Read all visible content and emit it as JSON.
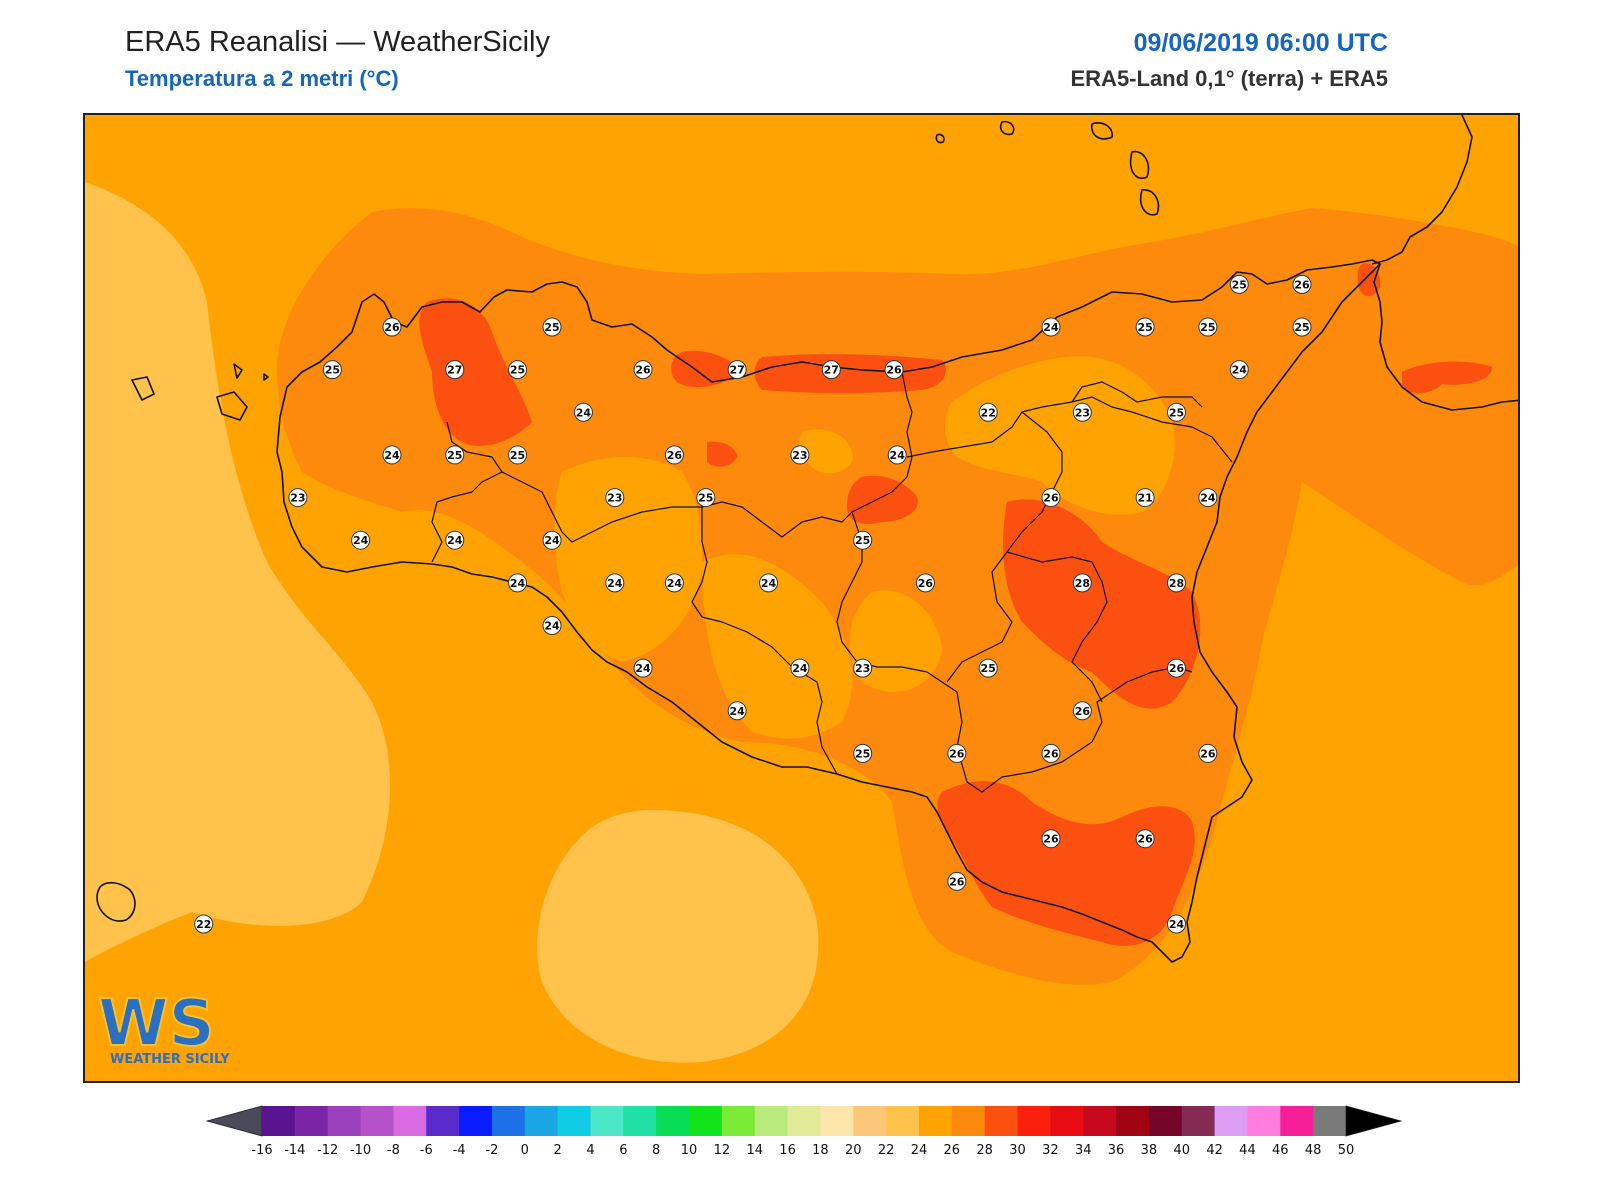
{
  "header": {
    "title": "ERA5 Reanalisi — WeatherSicily",
    "subtitle": "Temperatura a 2 metri (°C)",
    "datetime": "09/06/2019 06:00 UTC",
    "source": "ERA5-Land 0,1° (terra) + ERA5"
  },
  "logo": {
    "letters": "WS",
    "caption": "WEATHER SICILY"
  },
  "colors": {
    "t20": "#ffc24a",
    "t22": "#ffa303",
    "t24": "#fd8a0c",
    "t26": "#fb5010",
    "accent": "#1565c0"
  },
  "station_values": [
    {
      "label": "26",
      "lon": 12.54,
      "lat": 38.22
    },
    {
      "label": "25",
      "lon": 13.05,
      "lat": 38.22
    },
    {
      "label": "25",
      "lon": 12.35,
      "lat": 38.12
    },
    {
      "label": "27",
      "lon": 12.74,
      "lat": 38.12
    },
    {
      "label": "25",
      "lon": 12.94,
      "lat": 38.12
    },
    {
      "label": "26",
      "lon": 13.34,
      "lat": 38.12
    },
    {
      "label": "27",
      "lon": 13.64,
      "lat": 38.12
    },
    {
      "label": "27",
      "lon": 13.94,
      "lat": 38.12
    },
    {
      "label": "26",
      "lon": 14.14,
      "lat": 38.12
    },
    {
      "label": "24",
      "lon": 13.15,
      "lat": 38.02
    },
    {
      "label": "24",
      "lon": 12.54,
      "lat": 37.92
    },
    {
      "label": "25",
      "lon": 12.74,
      "lat": 37.92
    },
    {
      "label": "25",
      "lon": 12.94,
      "lat": 37.92
    },
    {
      "label": "26",
      "lon": 13.44,
      "lat": 37.92
    },
    {
      "label": "23",
      "lon": 13.84,
      "lat": 37.92
    },
    {
      "label": "24",
      "lon": 14.15,
      "lat": 37.92
    },
    {
      "label": "23",
      "lon": 12.24,
      "lat": 37.82
    },
    {
      "label": "23",
      "lon": 13.25,
      "lat": 37.82
    },
    {
      "label": "25",
      "lon": 13.54,
      "lat": 37.82
    },
    {
      "label": "24",
      "lon": 12.44,
      "lat": 37.72
    },
    {
      "label": "24",
      "lon": 12.74,
      "lat": 37.72
    },
    {
      "label": "24",
      "lon": 13.05,
      "lat": 37.72
    },
    {
      "label": "25",
      "lon": 14.04,
      "lat": 37.72
    },
    {
      "label": "24",
      "lon": 12.94,
      "lat": 37.62
    },
    {
      "label": "24",
      "lon": 13.25,
      "lat": 37.62
    },
    {
      "label": "24",
      "lon": 13.44,
      "lat": 37.62
    },
    {
      "label": "24",
      "lon": 13.74,
      "lat": 37.62
    },
    {
      "label": "26",
      "lon": 14.24,
      "lat": 37.62
    },
    {
      "label": "28",
      "lon": 14.74,
      "lat": 37.62
    },
    {
      "label": "28",
      "lon": 15.04,
      "lat": 37.62
    },
    {
      "label": "24",
      "lon": 13.05,
      "lat": 37.52
    },
    {
      "label": "24",
      "lon": 13.34,
      "lat": 37.42
    },
    {
      "label": "24",
      "lon": 13.84,
      "lat": 37.42
    },
    {
      "label": "23",
      "lon": 14.04,
      "lat": 37.42
    },
    {
      "label": "25",
      "lon": 14.44,
      "lat": 37.42
    },
    {
      "label": "26",
      "lon": 15.04,
      "lat": 37.42
    },
    {
      "label": "24",
      "lon": 13.64,
      "lat": 37.32
    },
    {
      "label": "26",
      "lon": 14.74,
      "lat": 37.32
    },
    {
      "label": "25",
      "lon": 14.04,
      "lat": 37.22
    },
    {
      "label": "26",
      "lon": 14.34,
      "lat": 37.22
    },
    {
      "label": "26",
      "lon": 14.64,
      "lat": 37.22
    },
    {
      "label": "26",
      "lon": 15.14,
      "lat": 37.22
    },
    {
      "label": "26",
      "lon": 14.64,
      "lat": 37.02
    },
    {
      "label": "26",
      "lon": 14.94,
      "lat": 37.02
    },
    {
      "label": "26",
      "lon": 14.34,
      "lat": 36.92
    },
    {
      "label": "24",
      "lon": 15.04,
      "lat": 36.82
    },
    {
      "label": "25",
      "lon": 14.94,
      "lat": 38.22
    },
    {
      "label": "25",
      "lon": 15.14,
      "lat": 38.22
    },
    {
      "label": "24",
      "lon": 14.64,
      "lat": 38.22
    },
    {
      "label": "25",
      "lon": 15.24,
      "lat": 38.32
    },
    {
      "label": "26",
      "lon": 15.44,
      "lat": 38.32
    },
    {
      "label": "25",
      "lon": 15.44,
      "lat": 38.22
    },
    {
      "label": "24",
      "lon": 15.24,
      "lat": 38.12
    },
    {
      "label": "22",
      "lon": 14.44,
      "lat": 38.02
    },
    {
      "label": "23",
      "lon": 14.74,
      "lat": 38.02
    },
    {
      "label": "25",
      "lon": 15.04,
      "lat": 38.02
    },
    {
      "label": "26",
      "lon": 14.64,
      "lat": 37.82
    },
    {
      "label": "21",
      "lon": 14.94,
      "lat": 37.82
    },
    {
      "label": "24",
      "lon": 15.14,
      "lat": 37.82
    },
    {
      "label": "22",
      "lon": 11.94,
      "lat": 36.82
    }
  ],
  "colorbar": {
    "ticks": [
      "-16",
      "-14",
      "-12",
      "-10",
      "-8",
      "-6",
      "-4",
      "-2",
      "0",
      "2",
      "4",
      "6",
      "8",
      "10",
      "12",
      "14",
      "16",
      "18",
      "20",
      "22",
      "24",
      "26",
      "28",
      "30",
      "32",
      "34",
      "36",
      "38",
      "40",
      "42",
      "44",
      "46",
      "48",
      "50"
    ],
    "colors": [
      "#3e0b5d",
      "#5b148f",
      "#7b24a6",
      "#9a40bd",
      "#b552c9",
      "#d86be2",
      "#5a2bcb",
      "#0b1bff",
      "#1d70e6",
      "#1aa6e5",
      "#0ecce4",
      "#4de6c7",
      "#20e0a6",
      "#09dc55",
      "#11e41a",
      "#79ea35",
      "#b8eb7c",
      "#e2ea9a",
      "#fde6aa",
      "#fdc77a",
      "#ffc24a",
      "#ffa303",
      "#fd8a0c",
      "#fb5010",
      "#fc1f0d",
      "#e80b11",
      "#c8081c",
      "#a00412",
      "#76052a",
      "#842b54",
      "#dd9df5",
      "#ff7ddf",
      "#f71f97",
      "#7a7a7a",
      "#3a3a3a"
    ]
  }
}
